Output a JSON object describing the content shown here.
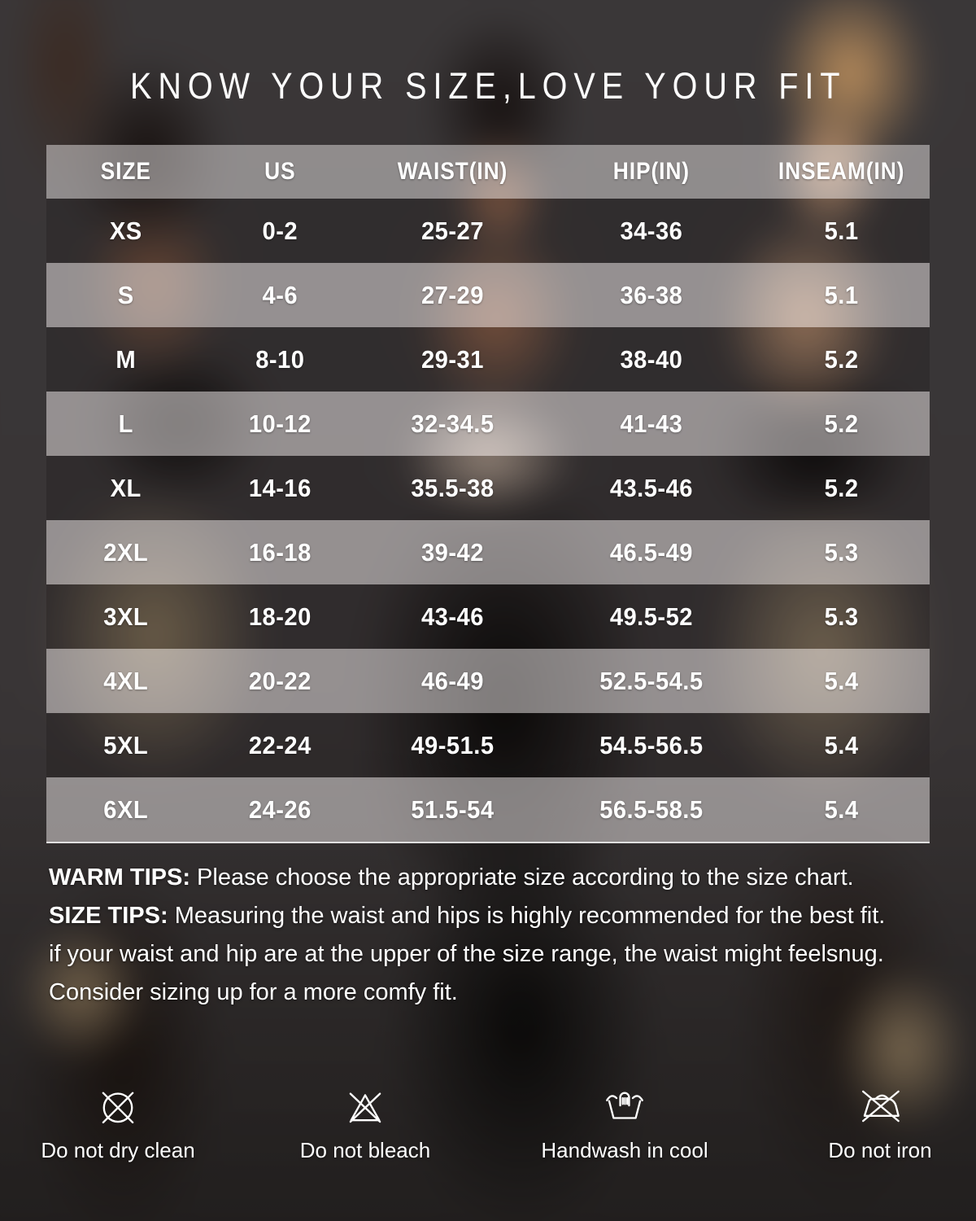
{
  "page": {
    "title": "KNOW YOUR SIZE,LOVE YOUR FIT"
  },
  "chart_data": {
    "type": "table",
    "title": "KNOW YOUR SIZE,LOVE YOUR FIT",
    "columns": [
      "SIZE",
      "US",
      "WAIST(IN)",
      "HIP(IN)",
      "INSEAM(IN)"
    ],
    "rows": [
      [
        "XS",
        "0-2",
        "25-27",
        "34-36",
        "5.1"
      ],
      [
        "S",
        "4-6",
        "27-29",
        "36-38",
        "5.1"
      ],
      [
        "M",
        "8-10",
        "29-31",
        "38-40",
        "5.2"
      ],
      [
        "L",
        "10-12",
        "32-34.5",
        "41-43",
        "5.2"
      ],
      [
        "XL",
        "14-16",
        "35.5-38",
        "43.5-46",
        "5.2"
      ],
      [
        "2XL",
        "16-18",
        "39-42",
        "46.5-49",
        "5.3"
      ],
      [
        "3XL",
        "18-20",
        "43-46",
        "49.5-52",
        "5.3"
      ],
      [
        "4XL",
        "20-22",
        "46-49",
        "52.5-54.5",
        "5.4"
      ],
      [
        "5XL",
        "22-24",
        "49-51.5",
        "54.5-56.5",
        "5.4"
      ],
      [
        "6XL",
        "24-26",
        "51.5-54",
        "56.5-58.5",
        "5.4"
      ]
    ],
    "layout_hints": {
      "header_overlay": "light translucent gray",
      "row_alternation": "dark photo row / light translucent row",
      "text_color": "#ffffff"
    }
  },
  "tips": {
    "warm_label": "WARM TIPS:",
    "warm_text": " Please choose the appropriate size according to the size chart.",
    "size_label": "SIZE TIPS:",
    "size_text": " Measuring the waist and hips is highly recommended for the best fit.",
    "line3": "if your waist and hip are at the upper of the size range, the waist might feelsnug.",
    "line4": "Consider sizing up for a more comfy fit."
  },
  "care": {
    "items": [
      {
        "icon": "do-not-dry-clean-icon",
        "label": "Do not dry clean"
      },
      {
        "icon": "do-not-bleach-icon",
        "label": "Do not bleach"
      },
      {
        "icon": "handwash-icon",
        "label": "Handwash in cool"
      },
      {
        "icon": "do-not-iron-icon",
        "label": "Do not iron"
      }
    ]
  },
  "colors": {
    "background": "#3a3738",
    "text": "#ffffff",
    "row_light_overlay": "rgba(233,229,228,0.52)",
    "row_dark_overlay": "rgba(10,6,4,0.18)"
  }
}
